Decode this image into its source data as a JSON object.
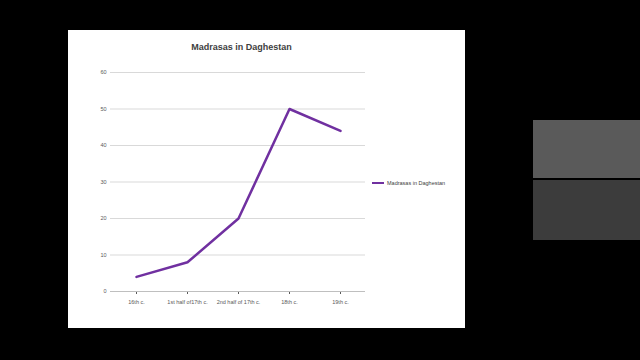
{
  "chart_data": {
    "type": "line",
    "title": "Madrasas in Daghestan",
    "categories": [
      "16th c.",
      "1st half of17th c.",
      "2nd half of 17th c.",
      "18th c.",
      "19th c."
    ],
    "series": [
      {
        "name": "Madrasas in Daghestan",
        "color": "#7030a0",
        "values": [
          4,
          8,
          20,
          50,
          44
        ]
      }
    ],
    "ylim": [
      0,
      60
    ],
    "yticks": [
      0,
      10,
      20,
      30,
      40,
      50,
      60
    ],
    "grid": true,
    "legend": "right"
  }
}
